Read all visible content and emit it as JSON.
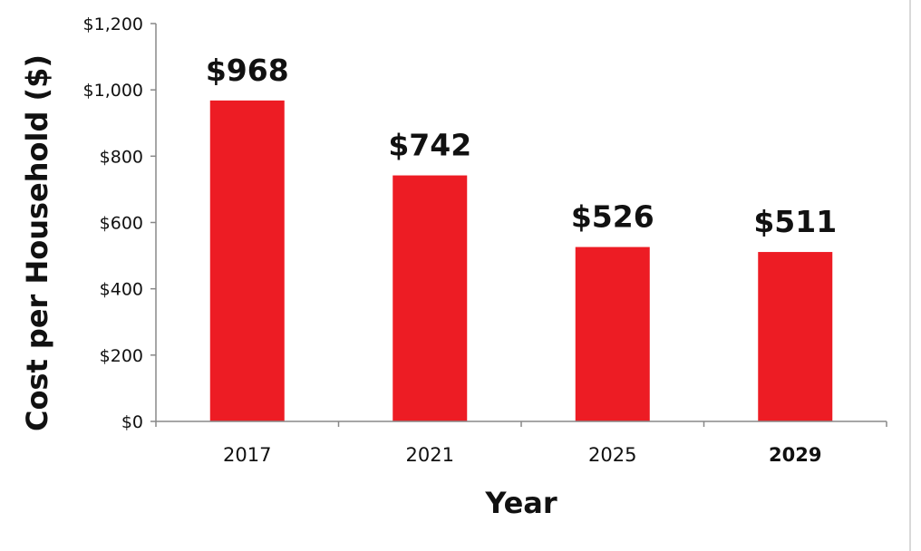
{
  "chart_data": {
    "type": "bar",
    "categories": [
      "2017",
      "2021",
      "2025",
      "2029"
    ],
    "values": [
      968,
      742,
      526,
      511
    ],
    "data_labels": [
      "$968",
      "$742",
      "$526",
      "$511"
    ],
    "bold_categories": [
      "2029"
    ],
    "title": "",
    "xlabel": "Year",
    "ylabel": "Cost per Household ($)",
    "ylim": [
      0,
      1200
    ],
    "yticks": [
      0,
      200,
      400,
      600,
      800,
      1000,
      1200
    ],
    "ytick_labels": [
      "$0",
      "$200",
      "$400",
      "$600",
      "$800",
      "$1,000",
      "$1,200"
    ],
    "grid": false,
    "legend": "none",
    "bar_color": "#ed1c24"
  }
}
